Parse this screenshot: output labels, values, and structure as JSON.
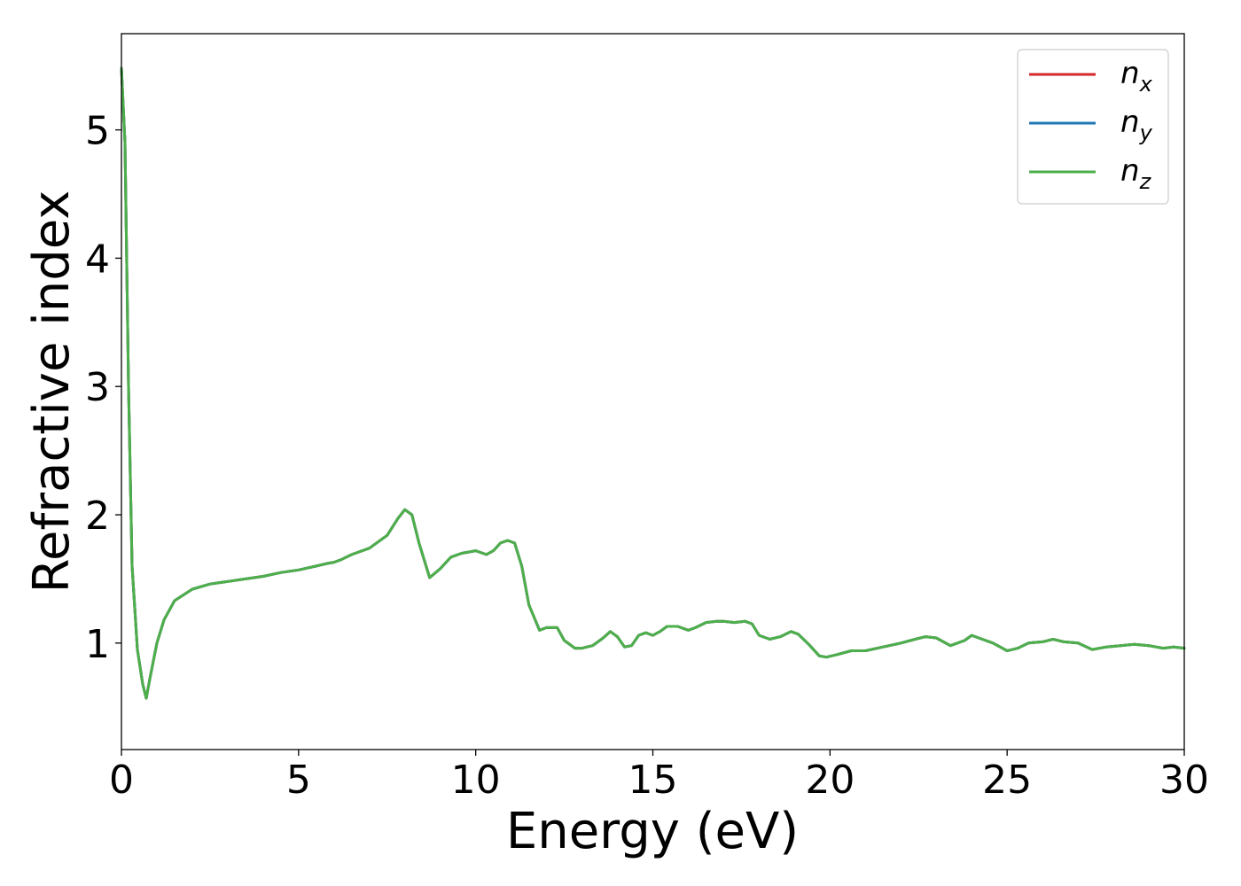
{
  "chart_data": {
    "type": "line",
    "xlabel": "Energy (eV)",
    "ylabel": "Refractive index",
    "xlim": [
      0,
      30
    ],
    "ylim": [
      0.17,
      5.75
    ],
    "xticks": [
      0,
      5,
      10,
      15,
      20,
      25,
      30
    ],
    "yticks": [
      1,
      2,
      3,
      4,
      5
    ],
    "xtick_labels": [
      "0",
      "5",
      "10",
      "15",
      "20",
      "25",
      "30"
    ],
    "ytick_labels": [
      "1",
      "2",
      "3",
      "4",
      "5"
    ],
    "grid": false,
    "legend_position": "top-right",
    "x": [
      0.0,
      0.1,
      0.2,
      0.3,
      0.45,
      0.6,
      0.7,
      0.8,
      1.0,
      1.2,
      1.5,
      2.0,
      2.5,
      3.0,
      3.5,
      4.0,
      4.5,
      5.0,
      5.5,
      5.8,
      6.0,
      6.2,
      6.5,
      7.0,
      7.5,
      7.8,
      8.0,
      8.2,
      8.4,
      8.7,
      9.0,
      9.3,
      9.6,
      10.0,
      10.3,
      10.5,
      10.7,
      10.9,
      11.1,
      11.3,
      11.5,
      11.8,
      12.0,
      12.3,
      12.5,
      12.8,
      13.0,
      13.3,
      13.6,
      13.8,
      14.0,
      14.2,
      14.4,
      14.6,
      14.8,
      15.0,
      15.2,
      15.4,
      15.7,
      16.0,
      16.2,
      16.5,
      16.8,
      17.0,
      17.3,
      17.6,
      17.8,
      18.0,
      18.3,
      18.6,
      18.9,
      19.1,
      19.4,
      19.7,
      19.9,
      20.2,
      20.6,
      21.0,
      21.5,
      22.0,
      22.4,
      22.7,
      23.0,
      23.4,
      23.8,
      24.0,
      24.3,
      24.6,
      25.0,
      25.3,
      25.6,
      26.0,
      26.3,
      26.6,
      27.0,
      27.4,
      27.8,
      28.2,
      28.6,
      29.0,
      29.4,
      29.7,
      30.0
    ],
    "series": [
      {
        "name": "n_x",
        "color": "#d62728",
        "values": [
          5.48,
          4.9,
          3.0,
          1.6,
          0.95,
          0.68,
          0.57,
          0.72,
          1.0,
          1.18,
          1.33,
          1.42,
          1.46,
          1.48,
          1.5,
          1.52,
          1.55,
          1.57,
          1.6,
          1.62,
          1.63,
          1.65,
          1.69,
          1.74,
          1.84,
          1.97,
          2.04,
          2.0,
          1.78,
          1.51,
          1.58,
          1.67,
          1.7,
          1.72,
          1.69,
          1.72,
          1.78,
          1.8,
          1.78,
          1.6,
          1.3,
          1.1,
          1.12,
          1.12,
          1.02,
          0.96,
          0.96,
          0.98,
          1.04,
          1.09,
          1.05,
          0.97,
          0.98,
          1.06,
          1.08,
          1.06,
          1.09,
          1.13,
          1.13,
          1.1,
          1.12,
          1.16,
          1.17,
          1.17,
          1.16,
          1.17,
          1.15,
          1.06,
          1.03,
          1.05,
          1.09,
          1.07,
          0.99,
          0.9,
          0.89,
          0.91,
          0.94,
          0.94,
          0.97,
          1.0,
          1.03,
          1.05,
          1.04,
          0.98,
          1.02,
          1.06,
          1.03,
          1.0,
          0.94,
          0.96,
          1.0,
          1.01,
          1.03,
          1.01,
          1.0,
          0.95,
          0.97,
          0.98,
          0.99,
          0.98,
          0.96,
          0.97,
          0.96
        ]
      },
      {
        "name": "n_y",
        "color": "#1f77b4",
        "values": [
          5.48,
          4.9,
          3.0,
          1.6,
          0.95,
          0.68,
          0.57,
          0.72,
          1.0,
          1.18,
          1.33,
          1.42,
          1.46,
          1.48,
          1.5,
          1.52,
          1.55,
          1.57,
          1.6,
          1.62,
          1.63,
          1.65,
          1.69,
          1.74,
          1.84,
          1.97,
          2.04,
          2.0,
          1.78,
          1.51,
          1.58,
          1.67,
          1.7,
          1.72,
          1.69,
          1.72,
          1.78,
          1.8,
          1.78,
          1.6,
          1.3,
          1.1,
          1.12,
          1.12,
          1.02,
          0.96,
          0.96,
          0.98,
          1.04,
          1.09,
          1.05,
          0.97,
          0.98,
          1.06,
          1.08,
          1.06,
          1.09,
          1.13,
          1.13,
          1.1,
          1.12,
          1.16,
          1.17,
          1.17,
          1.16,
          1.17,
          1.15,
          1.06,
          1.03,
          1.05,
          1.09,
          1.07,
          0.99,
          0.9,
          0.89,
          0.91,
          0.94,
          0.94,
          0.97,
          1.0,
          1.03,
          1.05,
          1.04,
          0.98,
          1.02,
          1.06,
          1.03,
          1.0,
          0.94,
          0.96,
          1.0,
          1.01,
          1.03,
          1.01,
          1.0,
          0.95,
          0.97,
          0.98,
          0.99,
          0.98,
          0.96,
          0.97,
          0.96
        ]
      },
      {
        "name": "n_z",
        "color": "#4daf4a",
        "values": [
          5.48,
          4.9,
          3.0,
          1.6,
          0.95,
          0.68,
          0.57,
          0.72,
          1.0,
          1.18,
          1.33,
          1.42,
          1.46,
          1.48,
          1.5,
          1.52,
          1.55,
          1.57,
          1.6,
          1.62,
          1.63,
          1.65,
          1.69,
          1.74,
          1.84,
          1.97,
          2.04,
          2.0,
          1.78,
          1.51,
          1.58,
          1.67,
          1.7,
          1.72,
          1.69,
          1.72,
          1.78,
          1.8,
          1.78,
          1.6,
          1.3,
          1.1,
          1.12,
          1.12,
          1.02,
          0.96,
          0.96,
          0.98,
          1.04,
          1.09,
          1.05,
          0.97,
          0.98,
          1.06,
          1.08,
          1.06,
          1.09,
          1.13,
          1.13,
          1.1,
          1.12,
          1.16,
          1.17,
          1.17,
          1.16,
          1.17,
          1.15,
          1.06,
          1.03,
          1.05,
          1.09,
          1.07,
          0.99,
          0.9,
          0.89,
          0.91,
          0.94,
          0.94,
          0.97,
          1.0,
          1.03,
          1.05,
          1.04,
          0.98,
          1.02,
          1.06,
          1.03,
          1.0,
          0.94,
          0.96,
          1.0,
          1.01,
          1.03,
          1.01,
          1.0,
          0.95,
          0.97,
          0.98,
          0.99,
          0.98,
          0.96,
          0.97,
          0.96
        ]
      }
    ],
    "legend": [
      {
        "base": "n",
        "sub": "x",
        "color": "#d62728"
      },
      {
        "base": "n",
        "sub": "y",
        "color": "#1f77b4"
      },
      {
        "base": "n",
        "sub": "z",
        "color": "#4daf4a"
      }
    ]
  }
}
